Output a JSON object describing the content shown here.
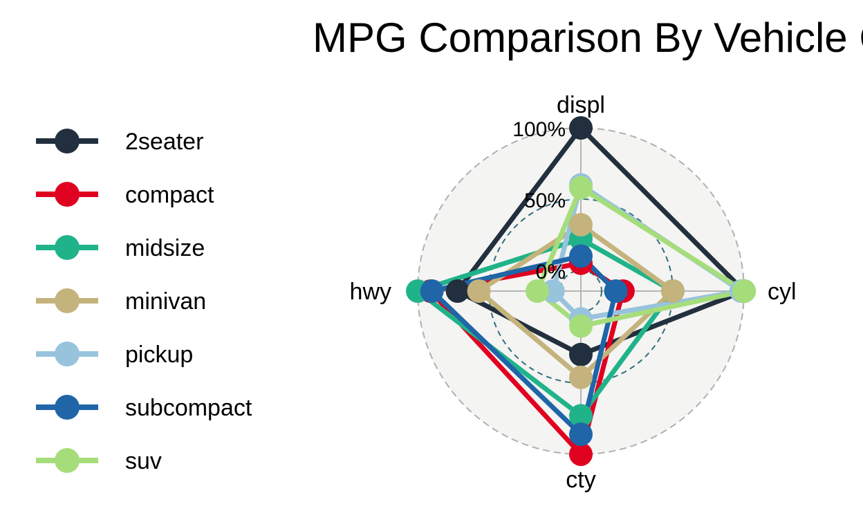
{
  "chart_data": {
    "type": "radar",
    "title": "MPG Comparison By Vehicle Class",
    "axes": [
      "displ",
      "cyl",
      "cty",
      "hwy"
    ],
    "grid_labels": [
      "0%",
      "50%",
      "100%"
    ],
    "range": [
      0,
      1
    ],
    "legend_position": "left",
    "series": [
      {
        "name": "2seater",
        "color": "#222f3e",
        "values": [
          1.0,
          1.0,
          0.3,
          0.72
        ]
      },
      {
        "name": "compact",
        "color": "#e00020",
        "values": [
          0.05,
          0.15,
          1.0,
          0.91
        ]
      },
      {
        "name": "midsize",
        "color": "#20b38a",
        "values": [
          0.22,
          0.5,
          0.73,
          1.0
        ]
      },
      {
        "name": "minivan",
        "color": "#c4b37c",
        "values": [
          0.32,
          0.5,
          0.46,
          0.57
        ]
      },
      {
        "name": "pickup",
        "color": "#97c3dd",
        "values": [
          0.6,
          0.98,
          0.05,
          0.05
        ]
      },
      {
        "name": "subcompact",
        "color": "#1f65a8",
        "values": [
          0.1,
          0.1,
          0.86,
          0.9
        ]
      },
      {
        "name": "suv",
        "color": "#a6dd7b",
        "values": [
          0.58,
          1.0,
          0.1,
          0.16
        ]
      }
    ]
  }
}
